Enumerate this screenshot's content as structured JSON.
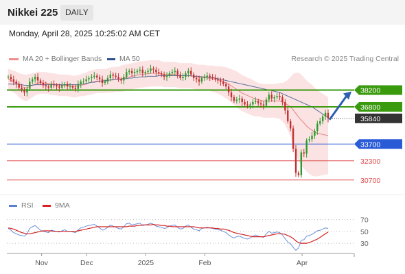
{
  "header": {
    "title": "Nikkei 225",
    "period": "DAILY",
    "datetime": "Monday, April 28, 2025 10:25:02 AM CET",
    "credit": "Research © 2025 Trading Central"
  },
  "legend": {
    "bollinger": {
      "label": "MA 20 + Bollinger Bands",
      "color": "#f28b8b"
    },
    "ma50": {
      "label": "MA 50",
      "color": "#2c4f8f"
    },
    "rsi": {
      "label": "RSI",
      "color": "#5b7fd1"
    },
    "rsi_ma": {
      "label": "9MA",
      "color": "#e02020"
    }
  },
  "chart_data": [
    {
      "type": "candlestick",
      "ylim": [
        29600,
        40000
      ],
      "x_ticks": [
        "Nov",
        "Dec",
        "2025",
        "Feb",
        "Apr"
      ],
      "levels": [
        {
          "value": 38200,
          "label": "38200",
          "color": "#3a9a0e",
          "style": "resistance"
        },
        {
          "value": 36800,
          "label": "36800",
          "color": "#3a9a0e",
          "style": "resistance"
        },
        {
          "value": 35840,
          "label": "35840",
          "color": "#333333",
          "style": "last"
        },
        {
          "value": 33700,
          "label": "33700",
          "color": "#2a5bd7",
          "style": "pivot"
        },
        {
          "value": 32300,
          "label": "32300",
          "color": "#e04a4a",
          "style": "support"
        },
        {
          "value": 30700,
          "label": "30700",
          "color": "#e04a4a",
          "style": "support"
        }
      ],
      "closes": [
        39300,
        39100,
        38900,
        38700,
        38400,
        38250,
        38000,
        38300,
        38900,
        39100,
        39300,
        39000,
        38800,
        38600,
        38500,
        38400,
        38700,
        38600,
        38500,
        38400,
        38600,
        38700,
        38500,
        38500,
        38400,
        38300,
        38700,
        38900,
        38950,
        39100,
        39200,
        39300,
        39400,
        39250,
        39100,
        38800,
        38900,
        39200,
        39500,
        39400,
        39300,
        39100,
        39000,
        39300,
        39700,
        39800,
        39600,
        39700,
        39800,
        39900,
        39600,
        39700,
        39800,
        40000,
        39900,
        39700,
        39600,
        39500,
        39300,
        39400,
        39600,
        39700,
        39800,
        39500,
        39200,
        39300,
        39600,
        39800,
        39500,
        39200,
        39100,
        38900,
        39200,
        39300,
        39400,
        39300,
        39200,
        39100,
        39000,
        38900,
        38700,
        38500,
        38000,
        37600,
        37300,
        37400,
        37500,
        37200,
        37000,
        36900,
        37000,
        37200,
        37300,
        37100,
        37000,
        36900,
        37400,
        37800,
        37500,
        37600,
        37700,
        37600,
        37200,
        36500,
        35600,
        35000,
        33300,
        31300,
        31100,
        33000,
        32900,
        34000,
        34100,
        34400,
        34800,
        35400,
        35600,
        36000,
        36300,
        35840
      ],
      "ma20": [
        39100,
        39000,
        38900,
        38800,
        38600,
        38500,
        38400,
        38400,
        38500,
        38600,
        38700,
        38800,
        38800,
        38800,
        38800,
        38750,
        38700,
        38700,
        38650,
        38600,
        38600,
        38600,
        38600,
        38550,
        38500,
        38500,
        38550,
        38600,
        38650,
        38700,
        38800,
        38850,
        38900,
        38950,
        38950,
        38950,
        38950,
        39000,
        39050,
        39050,
        39100,
        39100,
        39150,
        39200,
        39250,
        39300,
        39350,
        39400,
        39450,
        39500,
        39500,
        39550,
        39550,
        39600,
        39600,
        39600,
        39600,
        39550,
        39500,
        39500,
        39500,
        39500,
        39500,
        39450,
        39400,
        39400,
        39400,
        39400,
        39400,
        39350,
        39300,
        39250,
        39250,
        39250,
        39200,
        39200,
        39150,
        39100,
        39050,
        39000,
        38900,
        38800,
        38700,
        38550,
        38400,
        38250,
        38100,
        37950,
        37850,
        37750,
        37650,
        37550,
        37450,
        37400,
        37350,
        37300,
        37300,
        37300,
        37300,
        37300,
        37300,
        37300,
        37200,
        37100,
        36950,
        36800,
        36550,
        36250,
        35950,
        35700,
        35450,
        35200,
        35000,
        34850,
        34700,
        34600,
        34550,
        34500,
        34450,
        34400
      ],
      "ma50": [
        38700,
        38700,
        38700,
        38700,
        38700,
        38650,
        38600,
        38600,
        38600,
        38600,
        38650,
        38650,
        38650,
        38650,
        38650,
        38650,
        38650,
        38650,
        38650,
        38650,
        38650,
        38650,
        38650,
        38650,
        38650,
        38650,
        38650,
        38700,
        38700,
        38750,
        38800,
        38850,
        38850,
        38900,
        38950,
        38950,
        39000,
        39000,
        39050,
        39050,
        39100,
        39100,
        39100,
        39150,
        39150,
        39200,
        39200,
        39250,
        39250,
        39300,
        39300,
        39300,
        39350,
        39350,
        39350,
        39350,
        39400,
        39400,
        39400,
        39400,
        39400,
        39400,
        39400,
        39400,
        39400,
        39400,
        39400,
        39400,
        39400,
        39350,
        39350,
        39350,
        39300,
        39300,
        39300,
        39250,
        39250,
        39200,
        39150,
        39100,
        39050,
        39000,
        38950,
        38900,
        38850,
        38800,
        38750,
        38700,
        38650,
        38600,
        38550,
        38500,
        38450,
        38400,
        38350,
        38300,
        38250,
        38200,
        38150,
        38100,
        38050,
        38000,
        37900,
        37800,
        37700,
        37600,
        37500,
        37400,
        37300,
        37200,
        37100,
        37000,
        36900,
        36800,
        36650,
        36500,
        36350,
        36200,
        36050,
        35900
      ],
      "bb_width": [
        900,
        900,
        900,
        950,
        1000,
        1050,
        1100,
        1100,
        1050,
        1000,
        950,
        950,
        900,
        900,
        900,
        900,
        900,
        900,
        900,
        900,
        900,
        900,
        900,
        900,
        900,
        900,
        900,
        900,
        950,
        950,
        1000,
        1000,
        1000,
        1000,
        1000,
        1000,
        1000,
        1000,
        1050,
        1050,
        1050,
        1050,
        1100,
        1100,
        1100,
        1100,
        1100,
        1100,
        1100,
        1100,
        1100,
        1100,
        1100,
        1100,
        1100,
        1100,
        1100,
        1050,
        1050,
        1050,
        1050,
        1050,
        1050,
        1050,
        1050,
        1050,
        1050,
        1050,
        1050,
        1050,
        1050,
        1050,
        1050,
        1050,
        1050,
        1050,
        1100,
        1100,
        1150,
        1200,
        1250,
        1300,
        1350,
        1400,
        1450,
        1500,
        1500,
        1500,
        1500,
        1500,
        1500,
        1500,
        1450,
        1400,
        1400,
        1400,
        1400,
        1400,
        1400,
        1400,
        1450,
        1500,
        1600,
        1800,
        2100,
        2500,
        3000,
        3400,
        3700,
        3800,
        3800,
        3800,
        3800,
        3800,
        3700,
        3600,
        3500,
        3400,
        3300,
        3200
      ]
    },
    {
      "type": "line",
      "name_rsi": "RSI",
      "name_ma": "9MA",
      "ylim": [
        15,
        80
      ],
      "y_ticks": [
        70,
        50,
        30
      ],
      "rsi": [
        55,
        52,
        48,
        46,
        44,
        43,
        42,
        46,
        55,
        58,
        60,
        56,
        52,
        50,
        49,
        48,
        52,
        51,
        50,
        49,
        51,
        53,
        50,
        50,
        49,
        48,
        53,
        56,
        57,
        59,
        60,
        61,
        62,
        59,
        56,
        52,
        54,
        57,
        61,
        59,
        57,
        55,
        54,
        58,
        63,
        64,
        61,
        62,
        63,
        64,
        60,
        61,
        62,
        64,
        62,
        59,
        58,
        57,
        55,
        56,
        59,
        60,
        61,
        57,
        54,
        55,
        59,
        61,
        57,
        54,
        53,
        51,
        55,
        56,
        57,
        56,
        55,
        54,
        53,
        52,
        50,
        48,
        44,
        41,
        39,
        41,
        42,
        40,
        38,
        37,
        39,
        42,
        44,
        42,
        41,
        40,
        46,
        50,
        47,
        48,
        49,
        48,
        44,
        38,
        32,
        29,
        23,
        18,
        22,
        35,
        36,
        42,
        43,
        45,
        48,
        51,
        52,
        54,
        56,
        55
      ],
      "rsi_ma": [
        56,
        55,
        54,
        52,
        50,
        48,
        47,
        46,
        46,
        47,
        48,
        49,
        50,
        51,
        51,
        51,
        51,
        50,
        50,
        50,
        50,
        50,
        50,
        50,
        50,
        50,
        51,
        52,
        53,
        54,
        55,
        56,
        57,
        58,
        58,
        58,
        58,
        58,
        58,
        58,
        58,
        58,
        58,
        58,
        58,
        59,
        59,
        59,
        60,
        60,
        61,
        61,
        61,
        61,
        62,
        61,
        61,
        60,
        60,
        59,
        59,
        58,
        58,
        58,
        58,
        58,
        58,
        58,
        58,
        58,
        57,
        56,
        56,
        56,
        56,
        56,
        56,
        55,
        55,
        54,
        54,
        53,
        52,
        50,
        48,
        47,
        46,
        45,
        44,
        43,
        42,
        41,
        41,
        41,
        41,
        41,
        42,
        43,
        44,
        45,
        46,
        46,
        46,
        45,
        43,
        41,
        38,
        34,
        31,
        30,
        30,
        30,
        31,
        33,
        35,
        37,
        40,
        43,
        46,
        49
      ]
    }
  ]
}
